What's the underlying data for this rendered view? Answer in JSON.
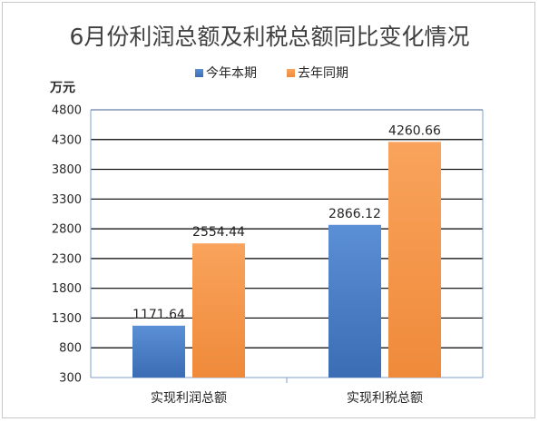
{
  "chart_data": {
    "type": "bar",
    "title": "6月份利润总额及利税总额同比变化情况",
    "ylabel": "万元",
    "categories": [
      "实现利润总额",
      "实现利税总额"
    ],
    "series": [
      {
        "name": "今年本期",
        "values": [
          1171.64,
          2866.12
        ],
        "labels": [
          "1171.64",
          "2866.12"
        ],
        "color": "#4a7fc9"
      },
      {
        "name": "去年同期",
        "values": [
          2554.44,
          4260.66
        ],
        "labels": [
          "2554.44",
          "4260.66"
        ],
        "color": "#f79646"
      }
    ],
    "ylim": [
      300,
      4800
    ],
    "yticks": [
      "300",
      "800",
      "1300",
      "1800",
      "2300",
      "2800",
      "3300",
      "3800",
      "4300",
      "4800"
    ],
    "grid": true,
    "legend_position": "top"
  }
}
